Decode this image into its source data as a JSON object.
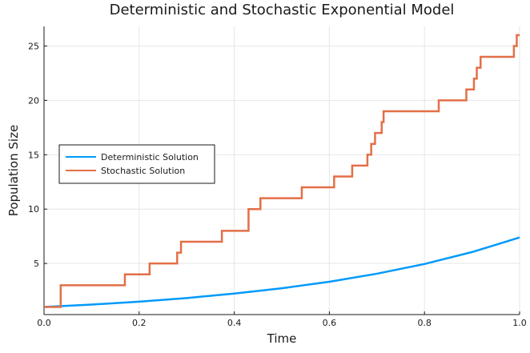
{
  "chart_data": {
    "type": "line",
    "title": "Deterministic and Stochastic Exponential Model",
    "xlabel": "Time",
    "ylabel": "Population Size",
    "xlim": [
      0,
      1
    ],
    "ylim": [
      0.3,
      26.8
    ],
    "x_ticks": [
      0.0,
      0.2,
      0.4,
      0.6,
      0.8,
      1.0
    ],
    "x_tick_labels": [
      "0.0",
      "0.2",
      "0.4",
      "0.6",
      "0.8",
      "1.0"
    ],
    "y_ticks": [
      5,
      10,
      15,
      20,
      25
    ],
    "y_tick_labels": [
      "5",
      "10",
      "15",
      "20",
      "25"
    ],
    "grid": true,
    "legend_position": "middle-left",
    "series": [
      {
        "name": "Deterministic Solution",
        "color": "#009AFA",
        "kind": "exponential",
        "x": [
          0.0,
          0.1,
          0.2,
          0.3,
          0.4,
          0.5,
          0.6,
          0.7,
          0.8,
          0.9,
          1.0
        ],
        "y": [
          1.0,
          1.22,
          1.49,
          1.82,
          2.23,
          2.72,
          3.32,
          4.06,
          4.95,
          6.05,
          7.39
        ]
      },
      {
        "name": "Stochastic Solution",
        "color": "#E36F47",
        "kind": "step",
        "x": [
          0.0,
          0.035,
          0.17,
          0.222,
          0.28,
          0.288,
          0.374,
          0.43,
          0.455,
          0.542,
          0.61,
          0.648,
          0.68,
          0.688,
          0.696,
          0.71,
          0.714,
          0.83,
          0.888,
          0.904,
          0.91,
          0.918,
          0.988,
          0.994,
          1.0
        ],
        "y": [
          1,
          3,
          4,
          5,
          6,
          7,
          8,
          10,
          11,
          12,
          13,
          14,
          15,
          16,
          17,
          18,
          19,
          20,
          21,
          22,
          23,
          24,
          25,
          26,
          26
        ]
      }
    ]
  }
}
